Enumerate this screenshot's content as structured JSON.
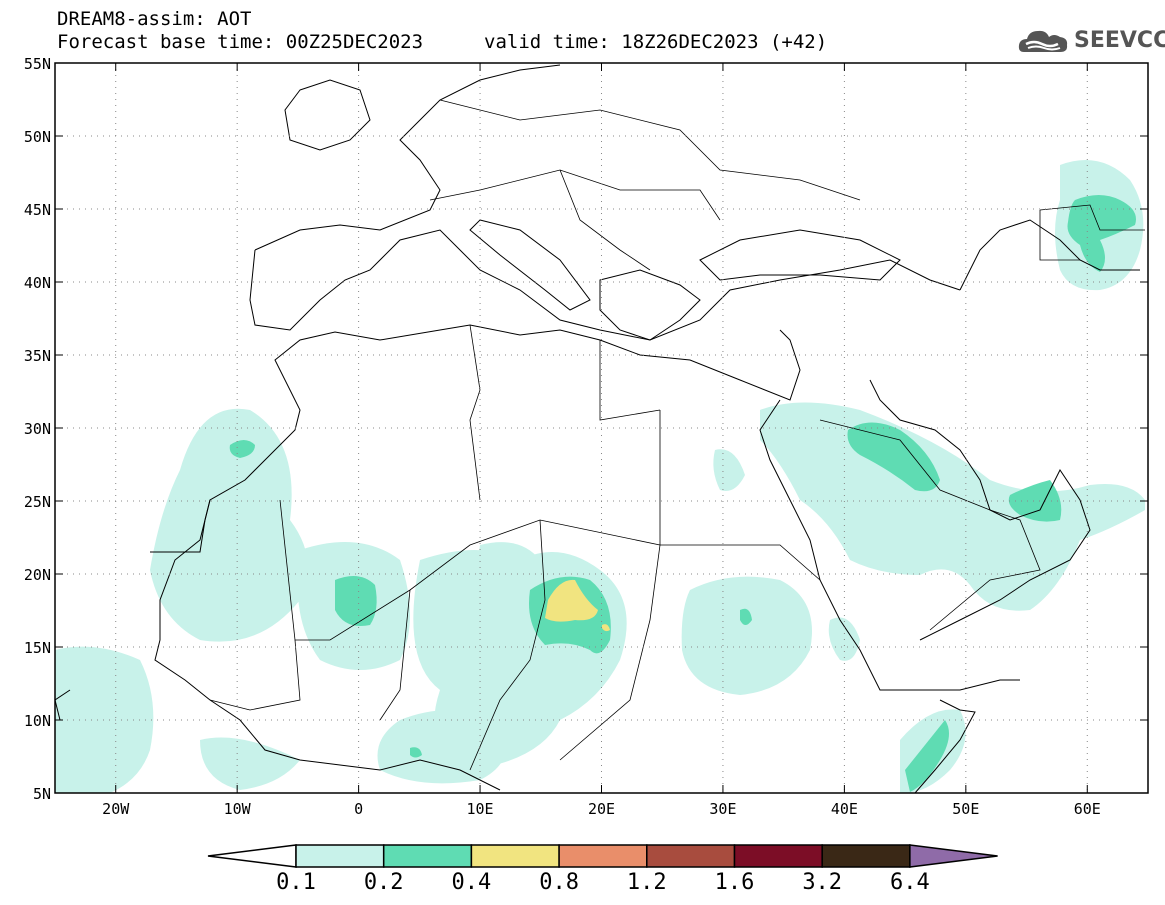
{
  "header": {
    "model_title": "DREAM8-assim: AOT",
    "forecast_base": "Forecast base time: 00Z25DEC2023",
    "valid_time": "valid time: 18Z26DEC2023 (+42)"
  },
  "logo": {
    "text": "SEEVCCC",
    "icon": "cloud-icon"
  },
  "map": {
    "lat_labels": [
      "55N",
      "50N",
      "45N",
      "40N",
      "35N",
      "30N",
      "25N",
      "20N",
      "15N",
      "10N",
      "5N"
    ],
    "lon_labels": [
      "20W",
      "10W",
      "0",
      "10E",
      "20E",
      "30E",
      "40E",
      "50E",
      "60E"
    ],
    "grid": "dotted",
    "extent": {
      "lon": [
        -25,
        65
      ],
      "lat": [
        5,
        55
      ]
    }
  },
  "colorbar": {
    "labels": [
      "0.1",
      "0.2",
      "0.4",
      "0.8",
      "1.2",
      "1.6",
      "3.2",
      "6.4"
    ],
    "colors": [
      "#c8f2ea",
      "#5fdcb3",
      "#f1e480",
      "#e98e6a",
      "#a84c3e",
      "#7c0d26",
      "#3a2816",
      "#8f6ba8"
    ],
    "low_color": "#ffffff"
  }
}
